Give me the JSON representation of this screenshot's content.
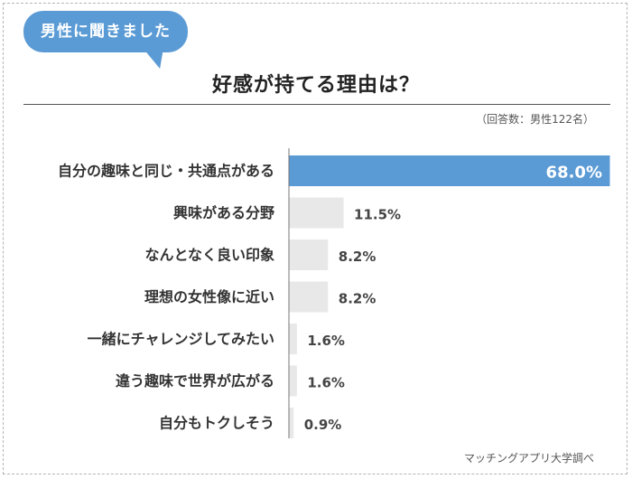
{
  "badge": "男性に聞きました",
  "note": "（回答数：男性122名）",
  "source": "マッチングアプリ大学調べ",
  "colors": {
    "accent": "#5b9bd5",
    "bar": "#e8e8e8"
  },
  "chart_data": {
    "type": "bar",
    "orientation": "horizontal",
    "title": "好感が持てる理由は？",
    "categories": [
      "自分の趣味と同じ・共通点がある",
      "興味がある分野",
      "なんとなく良い印象",
      "理想の女性像に近い",
      "一緒にチャレンジしてみたい",
      "違う趣味で世界が広がる",
      "自分もトクしそう"
    ],
    "values": [
      68.0,
      11.5,
      8.2,
      8.2,
      1.6,
      1.6,
      0.9
    ],
    "labels": [
      "68.0%",
      "11.5%",
      "8.2%",
      "8.2%",
      "1.6%",
      "1.6%",
      "0.9%"
    ],
    "xlim": [
      0,
      68.0
    ],
    "grid": false
  }
}
